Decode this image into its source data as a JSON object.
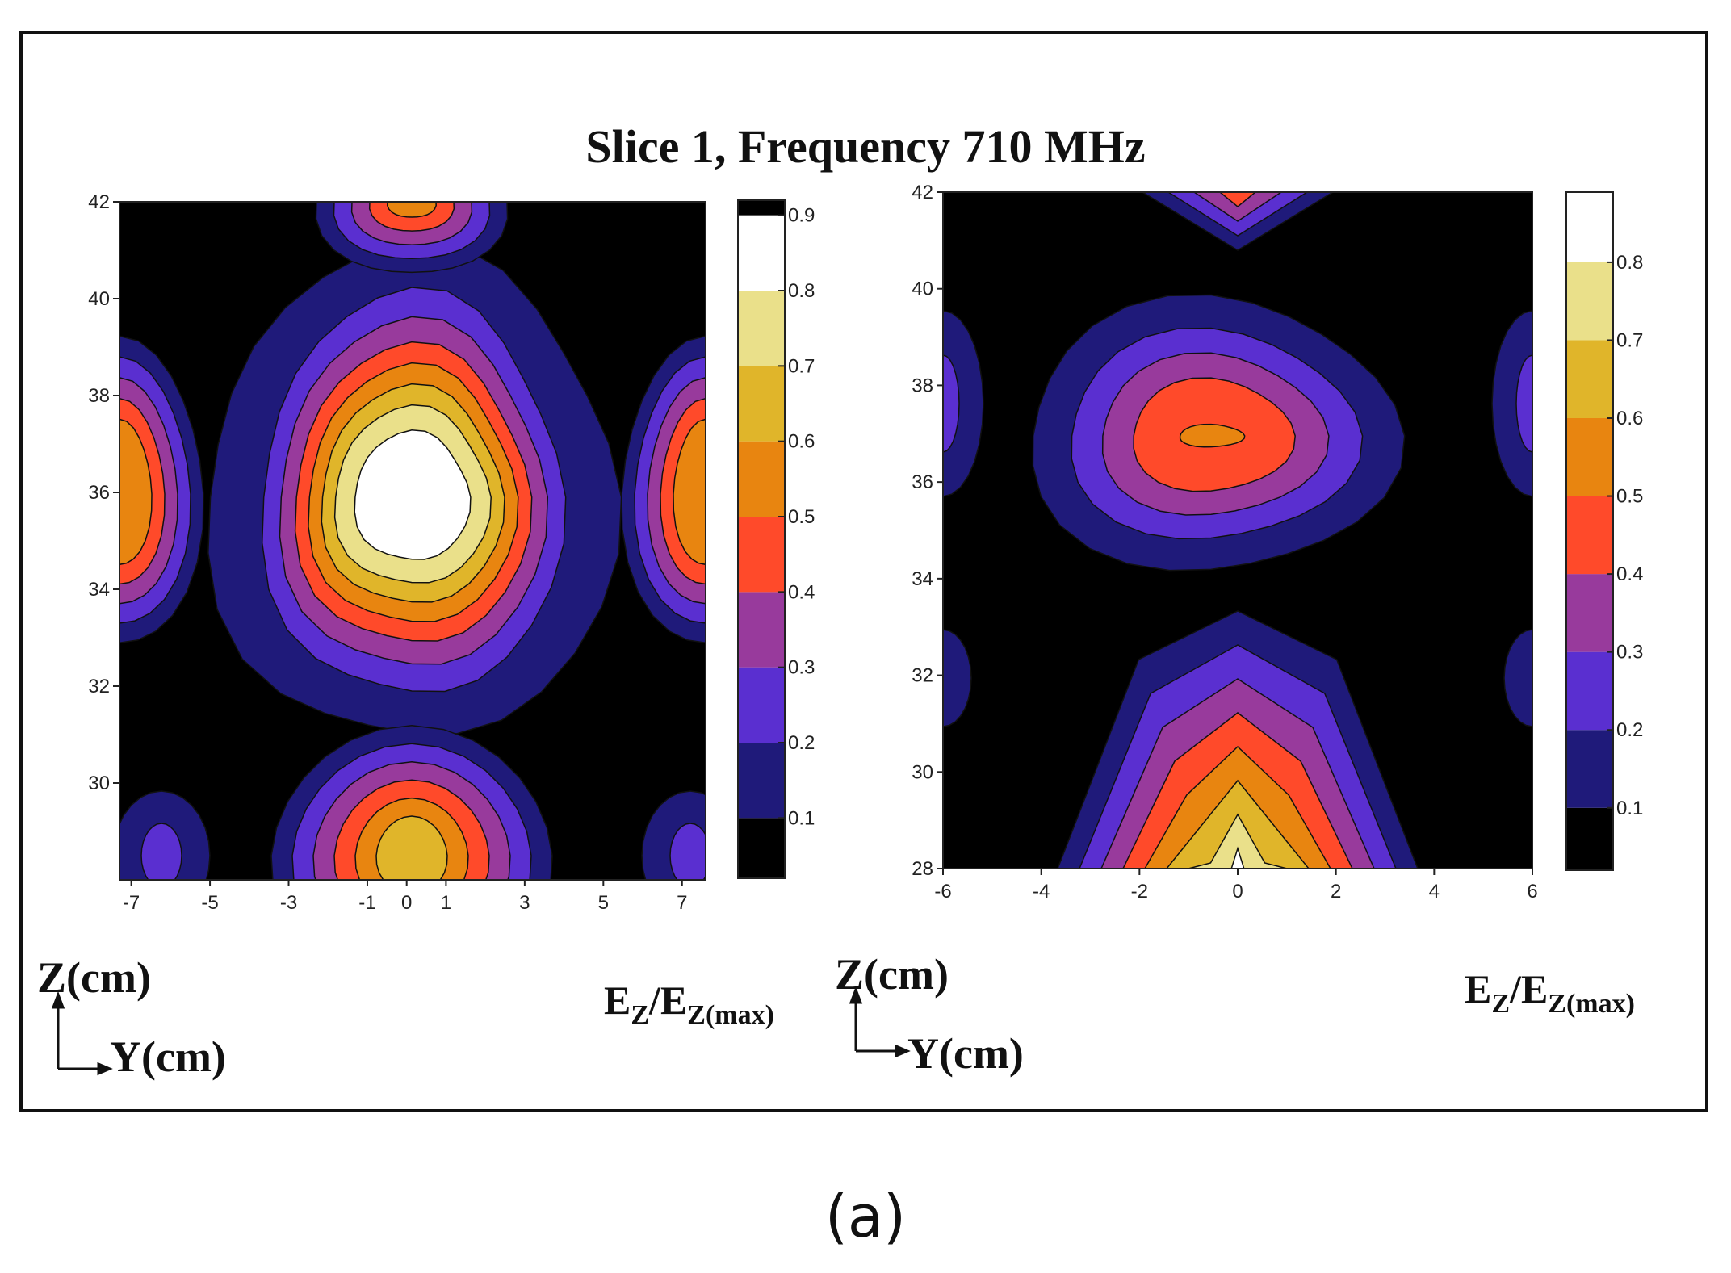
{
  "title": "Slice 1, Frequency 710 MHz",
  "caption": "(a)",
  "chart_data": [
    {
      "type": "heatmap",
      "subtype": "filled-contour",
      "xlabel": "Y(cm)",
      "ylabel": "Z(cm)",
      "colorbar_label": "EZ/EZ(max)",
      "x_ticks": [
        "-7",
        "-5",
        "-3",
        "-1",
        "0",
        "1",
        "3",
        "5",
        "7"
      ],
      "y_ticks": [
        "30",
        "32",
        "34",
        "36",
        "38",
        "40",
        "42"
      ],
      "xlim": [
        -7.3,
        7.6
      ],
      "ylim": [
        28,
        42
      ],
      "colorbar_ticks": [
        "0.1",
        "0.2",
        "0.3",
        "0.4",
        "0.5",
        "0.6",
        "0.7",
        "0.8",
        "0.9"
      ],
      "colorbar_range": [
        0.02,
        0.92
      ],
      "levels": [
        0.1,
        0.2,
        0.3,
        0.4,
        0.5,
        0.6,
        0.7,
        0.8,
        0.9
      ],
      "features": [
        {
          "description": "central maximum",
          "y": 0,
          "z": 36,
          "peak": 0.9
        },
        {
          "description": "left edge lobe",
          "y": -7.3,
          "z": 36,
          "peak": 0.6
        },
        {
          "description": "right edge lobe",
          "y": 7.6,
          "z": 36,
          "peak": 0.6
        },
        {
          "description": "lower lobe",
          "y": 0,
          "z": 29,
          "peak": 0.6
        },
        {
          "description": "top lobe",
          "y": 0,
          "z": 42,
          "peak": 0.5
        }
      ]
    },
    {
      "type": "heatmap",
      "subtype": "filled-contour",
      "xlabel": "Y(cm)",
      "ylabel": "Z(cm)",
      "colorbar_label": "EZ/EZ(max)",
      "x_ticks": [
        "-6",
        "-4",
        "-2",
        "0",
        "2",
        "4",
        "6"
      ],
      "y_ticks": [
        "28",
        "30",
        "32",
        "34",
        "36",
        "38",
        "40",
        "42"
      ],
      "xlim": [
        -6,
        6
      ],
      "ylim": [
        28,
        42
      ],
      "colorbar_ticks": [
        "0.1",
        "0.2",
        "0.3",
        "0.4",
        "0.5",
        "0.6",
        "0.7",
        "0.8"
      ],
      "colorbar_range": [
        0.02,
        0.89
      ],
      "levels": [
        0.1,
        0.2,
        0.3,
        0.4,
        0.5,
        0.6,
        0.7,
        0.8
      ],
      "features": [
        {
          "description": "upper lobe",
          "y": -0.5,
          "z": 37.6,
          "peak": 0.55
        },
        {
          "description": "bottom maximum",
          "y": 0,
          "z": 28,
          "peak": 0.89
        },
        {
          "description": "top lobe",
          "y": 0,
          "z": 42,
          "peak": 0.45
        },
        {
          "description": "left edge lobe",
          "y": -6,
          "z": 37,
          "peak": 0.3
        },
        {
          "description": "right edge lobe",
          "y": 6,
          "z": 37,
          "peak": 0.3
        }
      ]
    }
  ],
  "colormap": [
    "#000000",
    "#1f1a7a",
    "#5a2fd0",
    "#983a9c",
    "#ff4a2a",
    "#e88510",
    "#e0b52a",
    "#eae08a",
    "#ffffff"
  ]
}
